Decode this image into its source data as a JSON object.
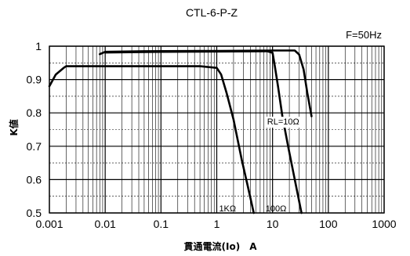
{
  "chart_data": {
    "type": "line",
    "title": "CTL-6-P-Z",
    "note": "F=50Hz",
    "xlabel": "貫通電流(Io)　A",
    "ylabel": "K値",
    "x_scale": "log",
    "xlim": [
      0.001,
      1000
    ],
    "ylim": [
      0.5,
      1.0
    ],
    "x_ticks": [
      "0.001",
      "0.01",
      "0.1",
      "1",
      "10",
      "100",
      "1000"
    ],
    "y_ticks": [
      "0.5",
      "0.6",
      "0.7",
      "0.8",
      "0.9",
      "1"
    ],
    "grid": true,
    "series": [
      {
        "name": "RL=10Ω",
        "points": [
          [
            0.008,
            0.976
          ],
          [
            0.01,
            0.983
          ],
          [
            0.05,
            0.985
          ],
          [
            1,
            0.986
          ],
          [
            10,
            0.987
          ],
          [
            25,
            0.987
          ],
          [
            30,
            0.975
          ],
          [
            36,
            0.93
          ],
          [
            42,
            0.86
          ],
          [
            50,
            0.79
          ]
        ]
      },
      {
        "name": "1KΩ",
        "points": [
          [
            0.001,
            0.88
          ],
          [
            0.0013,
            0.915
          ],
          [
            0.0018,
            0.935
          ],
          [
            0.002,
            0.94
          ],
          [
            0.01,
            0.94
          ],
          [
            0.1,
            0.94
          ],
          [
            0.5,
            0.94
          ],
          [
            1,
            0.935
          ],
          [
            1.2,
            0.915
          ],
          [
            1.5,
            0.86
          ],
          [
            2,
            0.78
          ],
          [
            2.8,
            0.66
          ],
          [
            3.6,
            0.58
          ],
          [
            4.6,
            0.5
          ]
        ]
      },
      {
        "name": "100Ω",
        "points": [
          [
            0.01,
            0.981
          ],
          [
            0.1,
            0.983
          ],
          [
            1,
            0.984
          ],
          [
            8,
            0.985
          ],
          [
            10,
            0.98
          ],
          [
            11,
            0.94
          ],
          [
            12.5,
            0.88
          ],
          [
            15,
            0.79
          ],
          [
            19,
            0.7
          ],
          [
            25,
            0.6
          ],
          [
            33,
            0.5
          ]
        ]
      }
    ]
  }
}
